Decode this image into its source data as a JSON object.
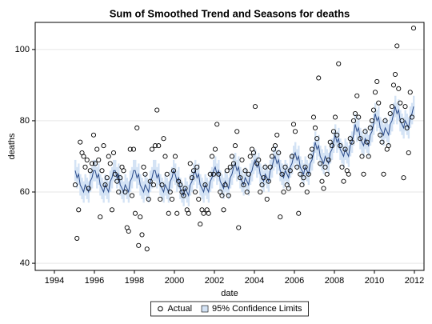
{
  "chart_data": {
    "type": "line",
    "title": "Sum of Smoothed Trend and Seasons for deaths",
    "x_label": "date",
    "y_label": "deaths",
    "x": [
      1995.04,
      1995.13,
      1995.21,
      1995.29,
      1995.38,
      1995.46,
      1995.54,
      1995.63,
      1995.71,
      1995.79,
      1995.88,
      1995.96,
      1996.04,
      1996.13,
      1996.21,
      1996.29,
      1996.38,
      1996.46,
      1996.54,
      1996.63,
      1996.71,
      1996.79,
      1996.88,
      1996.96,
      1997.04,
      1997.13,
      1997.21,
      1997.29,
      1997.38,
      1997.46,
      1997.54,
      1997.63,
      1997.71,
      1997.79,
      1997.88,
      1997.96,
      1998.04,
      1998.13,
      1998.21,
      1998.29,
      1998.38,
      1998.46,
      1998.54,
      1998.63,
      1998.71,
      1998.79,
      1998.88,
      1998.96,
      1999.04,
      1999.13,
      1999.21,
      1999.29,
      1999.38,
      1999.46,
      1999.54,
      1999.63,
      1999.71,
      1999.79,
      1999.88,
      1999.96,
      2000.04,
      2000.13,
      2000.21,
      2000.29,
      2000.38,
      2000.46,
      2000.54,
      2000.63,
      2000.71,
      2000.79,
      2000.88,
      2000.96,
      2001.04,
      2001.13,
      2001.21,
      2001.29,
      2001.38,
      2001.46,
      2001.54,
      2001.63,
      2001.71,
      2001.79,
      2001.88,
      2001.96,
      2002.04,
      2002.13,
      2002.21,
      2002.29,
      2002.38,
      2002.46,
      2002.54,
      2002.63,
      2002.71,
      2002.79,
      2002.88,
      2002.96,
      2003.04,
      2003.13,
      2003.21,
      2003.29,
      2003.38,
      2003.46,
      2003.54,
      2003.63,
      2003.71,
      2003.79,
      2003.88,
      2003.96,
      2004.04,
      2004.13,
      2004.21,
      2004.29,
      2004.38,
      2004.46,
      2004.54,
      2004.63,
      2004.71,
      2004.79,
      2004.88,
      2004.96,
      2005.04,
      2005.13,
      2005.21,
      2005.29,
      2005.38,
      2005.46,
      2005.54,
      2005.63,
      2005.71,
      2005.79,
      2005.88,
      2005.96,
      2006.04,
      2006.13,
      2006.21,
      2006.29,
      2006.38,
      2006.46,
      2006.54,
      2006.63,
      2006.71,
      2006.79,
      2006.88,
      2006.96,
      2007.04,
      2007.13,
      2007.21,
      2007.29,
      2007.38,
      2007.46,
      2007.54,
      2007.63,
      2007.71,
      2007.79,
      2007.88,
      2007.96,
      2008.04,
      2008.13,
      2008.21,
      2008.29,
      2008.38,
      2008.46,
      2008.54,
      2008.63,
      2008.71,
      2008.79,
      2008.88,
      2008.96,
      2009.04,
      2009.13,
      2009.21,
      2009.29,
      2009.38,
      2009.46,
      2009.54,
      2009.63,
      2009.71,
      2009.79,
      2009.88,
      2009.96,
      2010.04,
      2010.13,
      2010.21,
      2010.29,
      2010.38,
      2010.46,
      2010.54,
      2010.63,
      2010.71,
      2010.79,
      2010.88,
      2010.96,
      2011.04,
      2011.13,
      2011.21,
      2011.29,
      2011.38,
      2011.46,
      2011.54,
      2011.63,
      2011.71,
      2011.79,
      2011.88,
      2011.96
    ],
    "series": [
      {
        "name": "Actual",
        "style": "markers",
        "color": "#000000",
        "values": [
          62,
          47,
          55,
          74,
          71,
          70,
          67,
          69,
          61,
          66,
          68,
          76,
          68,
          72,
          69,
          53,
          66,
          73,
          62,
          64,
          70,
          68,
          55,
          71,
          65,
          63,
          60,
          64,
          67,
          66,
          60,
          50,
          49,
          72,
          59,
          72,
          54,
          78,
          45,
          53,
          48,
          67,
          65,
          44,
          58,
          63,
          72,
          62,
          73,
          83,
          73,
          58,
          62,
          75,
          70,
          65,
          54,
          60,
          58,
          66,
          70,
          54,
          63,
          62,
          60,
          59,
          61,
          55,
          54,
          68,
          64,
          66,
          60,
          67,
          58,
          51,
          55,
          54,
          62,
          55,
          54,
          65,
          70,
          65,
          72,
          79,
          65,
          60,
          59,
          55,
          62,
          66,
          59,
          67,
          70,
          68,
          73,
          77,
          50,
          64,
          69,
          62,
          66,
          60,
          65,
          70,
          72,
          71,
          84,
          68,
          69,
          60,
          62,
          64,
          67,
          58,
          63,
          67,
          70,
          72,
          73,
          76,
          71,
          53,
          65,
          60,
          67,
          62,
          61,
          66,
          70,
          79,
          77,
          67,
          54,
          65,
          62,
          64,
          67,
          60,
          65,
          70,
          72,
          81,
          78,
          75,
          92,
          68,
          63,
          61,
          67,
          65,
          69,
          74,
          73,
          77,
          81,
          76,
          96,
          73,
          67,
          63,
          72,
          66,
          65,
          75,
          74,
          80,
          82,
          87,
          81,
          75,
          70,
          65,
          77,
          74,
          70,
          78,
          80,
          83,
          88,
          91,
          85,
          76,
          74,
          65,
          80,
          72,
          73,
          82,
          84,
          90,
          93,
          101,
          89,
          85,
          80,
          64,
          84,
          78,
          71,
          88,
          81,
          106
        ]
      },
      {
        "style": "line",
        "color": "#2b4c8c",
        "values": [
          66,
          64,
          65,
          62,
          61,
          60,
          62,
          61,
          60,
          63,
          64,
          66,
          66,
          64,
          65,
          62,
          61,
          60,
          62,
          61,
          60,
          63,
          64,
          66,
          66,
          64,
          65,
          62,
          61,
          60,
          62,
          61,
          60,
          63,
          64,
          66,
          66,
          64,
          65,
          62,
          61,
          60,
          62,
          61,
          60,
          63,
          64,
          66,
          66,
          64,
          65,
          62,
          61,
          60,
          62,
          61,
          60,
          63,
          64,
          66,
          65,
          63,
          64,
          61,
          60,
          59,
          61,
          60,
          59,
          62,
          63,
          65,
          66,
          64,
          65,
          62,
          61,
          60,
          62,
          61,
          60,
          63,
          64,
          66,
          67,
          65,
          66,
          63,
          62,
          61,
          63,
          62,
          61,
          64,
          65,
          67,
          68,
          66,
          67,
          64,
          63,
          62,
          64,
          63,
          62,
          65,
          66,
          68,
          69,
          67,
          68,
          65,
          64,
          63,
          65,
          64,
          63,
          66,
          67,
          69,
          70,
          68,
          69,
          66,
          65,
          64,
          66,
          65,
          64,
          67,
          68,
          70,
          71,
          69,
          70,
          67,
          66,
          65,
          67,
          66,
          65,
          68,
          69,
          71,
          74,
          72,
          73,
          70,
          69,
          68,
          70,
          69,
          68,
          71,
          72,
          74,
          76,
          74,
          75,
          72,
          71,
          70,
          72,
          71,
          70,
          73,
          74,
          76,
          79,
          77,
          78,
          75,
          74,
          73,
          75,
          74,
          73,
          76,
          77,
          79,
          82,
          80,
          81,
          78,
          77,
          76,
          78,
          77,
          76,
          79,
          80,
          82,
          84,
          82,
          83,
          80,
          79,
          78,
          80,
          79,
          78,
          81,
          82,
          84
        ]
      }
    ],
    "band": {
      "name": "95% Confidence Limits",
      "color": "#d4e3f5",
      "lower": [
        63,
        61,
        62,
        59,
        58,
        57,
        59,
        58,
        57,
        60,
        61,
        63,
        63,
        61,
        62,
        59,
        58,
        57,
        59,
        58,
        57,
        60,
        61,
        63,
        63,
        61,
        62,
        59,
        58,
        57,
        59,
        58,
        57,
        60,
        61,
        63,
        63,
        61,
        62,
        59,
        58,
        57,
        59,
        58,
        57,
        60,
        61,
        63,
        63,
        61,
        62,
        59,
        58,
        57,
        59,
        58,
        57,
        60,
        61,
        63,
        62,
        60,
        61,
        58,
        57,
        56,
        58,
        57,
        56,
        59,
        60,
        62,
        63,
        61,
        62,
        59,
        58,
        57,
        59,
        58,
        57,
        60,
        61,
        63,
        64,
        62,
        63,
        60,
        59,
        58,
        60,
        59,
        58,
        61,
        62,
        64,
        65,
        63,
        64,
        61,
        60,
        59,
        61,
        60,
        59,
        62,
        63,
        65,
        66,
        64,
        65,
        62,
        61,
        60,
        62,
        61,
        60,
        63,
        64,
        66,
        67,
        65,
        66,
        63,
        62,
        61,
        63,
        62,
        61,
        64,
        65,
        67,
        68,
        66,
        67,
        64,
        63,
        62,
        64,
        63,
        62,
        65,
        66,
        68,
        71,
        69,
        70,
        67,
        66,
        65,
        67,
        66,
        65,
        68,
        69,
        71,
        73,
        71,
        72,
        69,
        68,
        67,
        69,
        68,
        67,
        70,
        71,
        73,
        76,
        74,
        75,
        72,
        71,
        70,
        72,
        71,
        70,
        73,
        74,
        76,
        79,
        77,
        78,
        75,
        74,
        73,
        75,
        74,
        73,
        76,
        77,
        79,
        81,
        79,
        80,
        77,
        76,
        75,
        77,
        76,
        75,
        78,
        79,
        81
      ],
      "upper": [
        69,
        67,
        68,
        65,
        64,
        63,
        65,
        64,
        63,
        66,
        67,
        69,
        69,
        67,
        68,
        65,
        64,
        63,
        65,
        64,
        63,
        66,
        67,
        69,
        69,
        67,
        68,
        65,
        64,
        63,
        65,
        64,
        63,
        66,
        67,
        69,
        69,
        67,
        68,
        65,
        64,
        63,
        65,
        64,
        63,
        66,
        67,
        69,
        69,
        67,
        68,
        65,
        64,
        63,
        65,
        64,
        63,
        66,
        67,
        69,
        68,
        66,
        67,
        64,
        63,
        62,
        64,
        63,
        62,
        65,
        66,
        68,
        69,
        67,
        68,
        65,
        64,
        63,
        65,
        64,
        63,
        66,
        67,
        69,
        70,
        68,
        69,
        66,
        65,
        64,
        66,
        65,
        64,
        67,
        68,
        70,
        71,
        69,
        70,
        67,
        66,
        65,
        67,
        66,
        65,
        68,
        69,
        71,
        72,
        70,
        71,
        68,
        67,
        66,
        68,
        67,
        66,
        69,
        70,
        72,
        73,
        71,
        72,
        69,
        68,
        67,
        69,
        68,
        67,
        70,
        71,
        73,
        74,
        72,
        73,
        70,
        69,
        68,
        70,
        69,
        68,
        71,
        72,
        74,
        77,
        75,
        76,
        73,
        72,
        71,
        73,
        72,
        71,
        74,
        75,
        77,
        79,
        77,
        78,
        75,
        74,
        73,
        75,
        74,
        73,
        76,
        77,
        79,
        82,
        80,
        81,
        78,
        77,
        76,
        78,
        77,
        76,
        79,
        80,
        82,
        85,
        83,
        84,
        81,
        80,
        79,
        81,
        80,
        79,
        82,
        83,
        85,
        87,
        85,
        86,
        83,
        82,
        81,
        83,
        82,
        81,
        84,
        85,
        87
      ]
    },
    "xlim": [
      1993.04,
      2012.48
    ],
    "ylim": [
      38,
      107.6
    ],
    "xticks": [
      1994,
      1996,
      1998,
      2000,
      2002,
      2004,
      2006,
      2008,
      2010,
      2012
    ],
    "yticks": [
      40,
      60,
      80,
      100
    ],
    "grid": "y",
    "legend": "bottom"
  }
}
